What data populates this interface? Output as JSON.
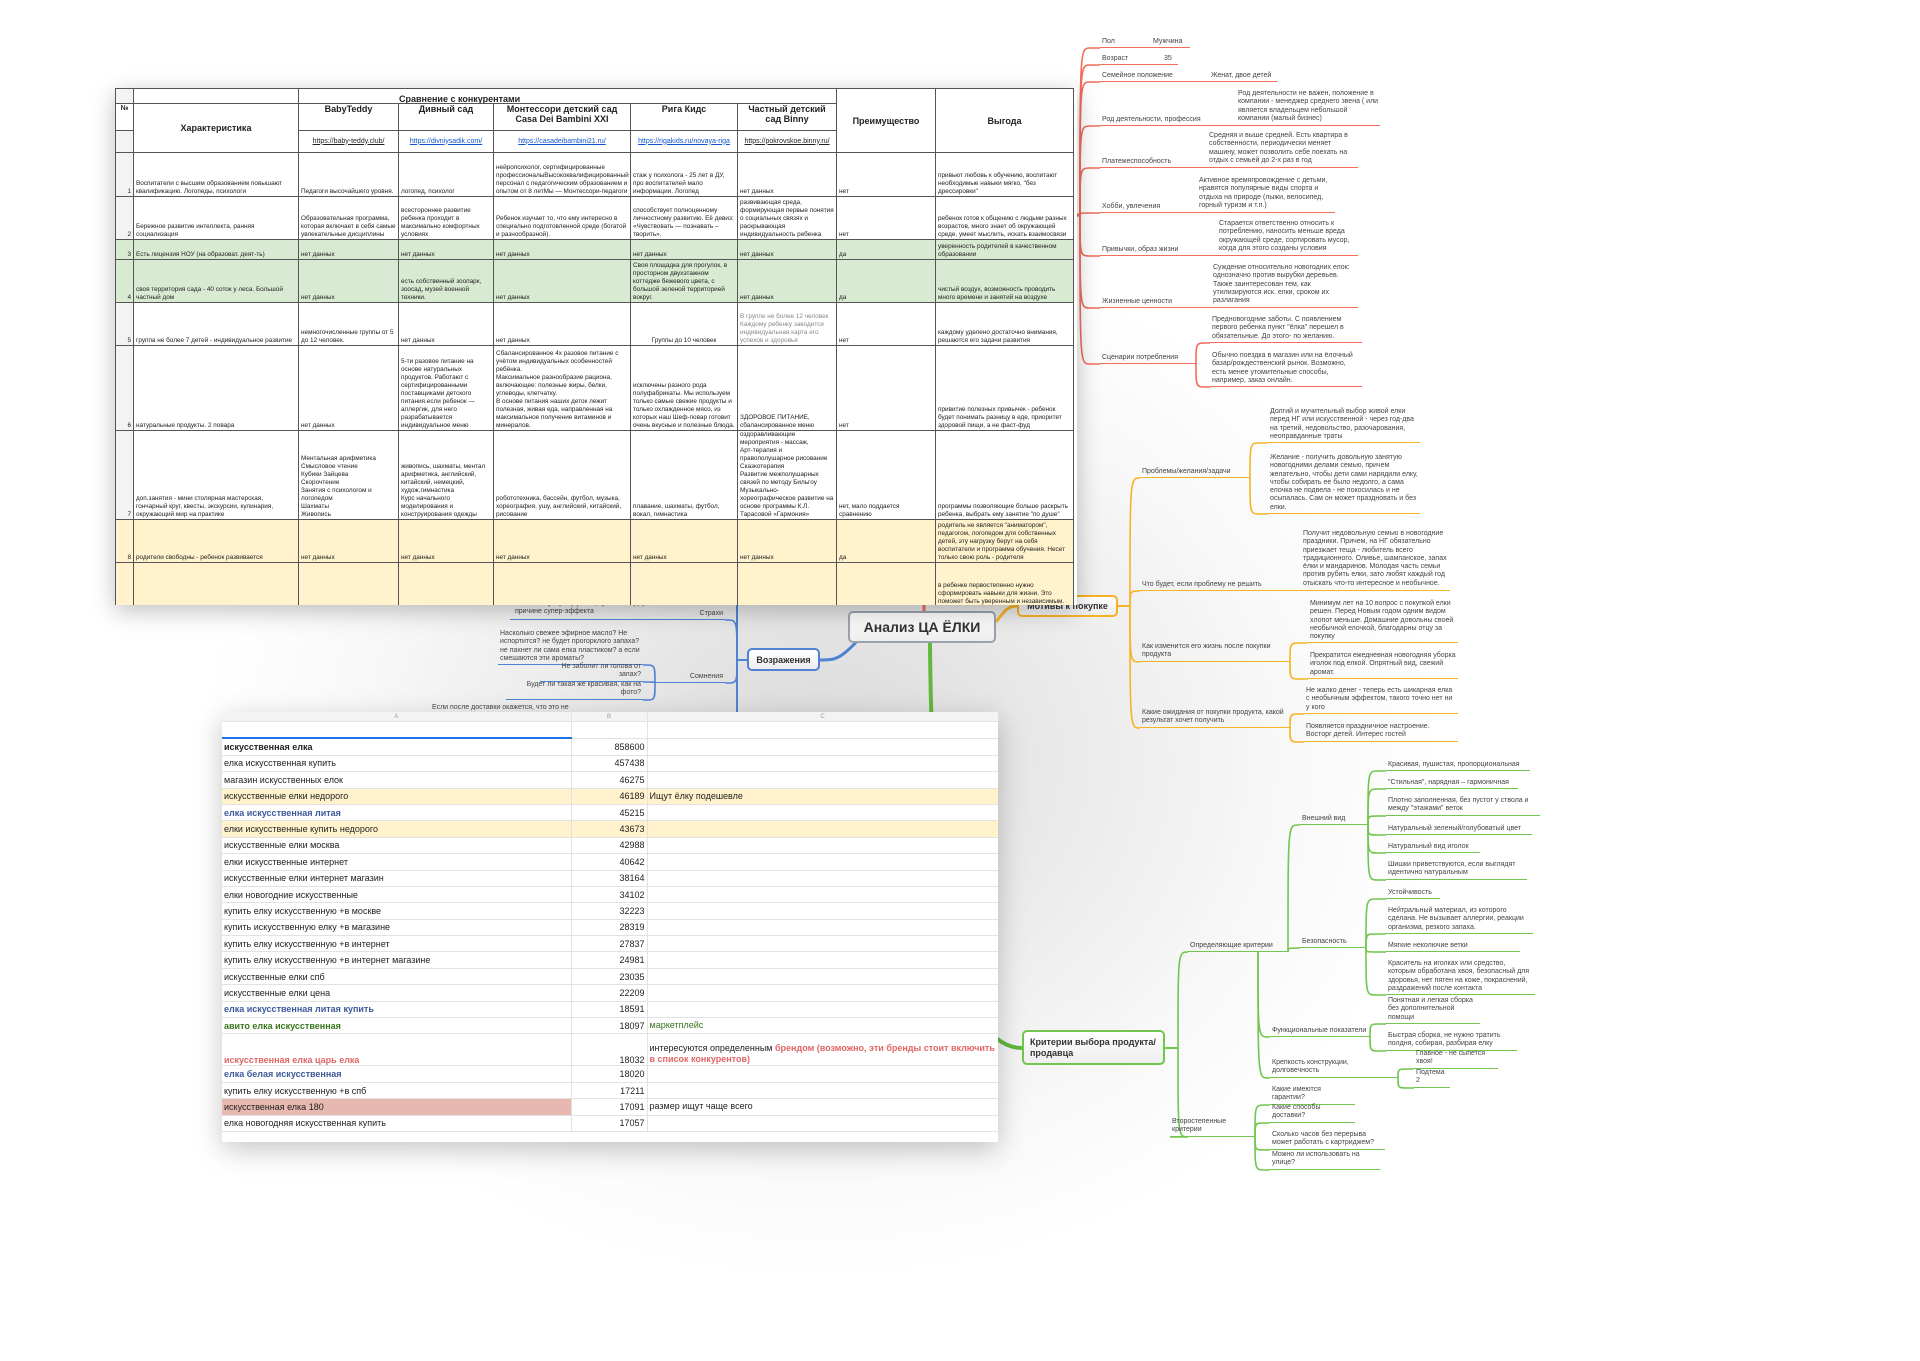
{
  "colors": {
    "persona_branch": "#f26b5b",
    "motives_branch": "#f6b425",
    "criteria_branch": "#72c54e",
    "objections_branch": "#4f82d2",
    "sheet_green": "#d9ead3",
    "sheet_yellow": "#fff2cc",
    "sheet_pink": "#e6b8af",
    "link": "#1155cc"
  },
  "comparison_table": {
    "title": "Сравнение с конкурентами",
    "num_header": "№",
    "feature_header": "Характеристика",
    "advantage_header": "Преимущество",
    "benefit_header": "Выгода",
    "competitors": [
      "BabyTeddy",
      "Дивный сад",
      "Монтессори детский сад Casa Dei Bambini XXI",
      "Рига Кидс",
      "Частный детский сад Binny"
    ],
    "links": [
      "https://baby-teddy.club/",
      "https://divniysadik.com/",
      "https://casadeibambini21.ru/",
      "https://rigakids.ru/novaya-riga",
      "https://pokrovskoe.binny.ru/"
    ],
    "rows": [
      {
        "num": "1",
        "fill": "",
        "feature": "Воспитатели с высшим образованием повышают квалификацию. Логопеды, психологи",
        "values": [
          "Педагоги высочайшего уровня.",
          "логопед, психолог",
          "нейропсихолог, сертифицированные профессионалыВысококвалифицированный персонал с педагогическим образованием и опытом от 8 летМы — Монтессори-педагоги",
          "стаж у психолога - 25 лет в ДУ, про воспитателей мало информации. Логопед",
          "нет данных"
        ],
        "advantage": "нет",
        "benefit": "привьют любовь к обучению, воспитают необходимые навыки мягко, \"без дрессировки\""
      },
      {
        "num": "2",
        "fill": "",
        "feature": "Бережное развитие интеллекта, ранняя социализация",
        "values": [
          "Образовательная программа, которая включает в себя самые увлекательные дисциплины",
          "всестороннее развитие ребенка проходит в максимально комфортных условиях",
          "Ребенок изучает то, что ему интересно в специально подготовленной среде (богатой и разнообразной).",
          "способствует полноценному личностному развитию. Её девиз: «Чувствовать — познавать – творить».",
          "развивающая среда, формирующая первые понятия о социальных связях и раскрывающая индивидуальность ребенка"
        ],
        "advantage": "нет",
        "benefit": "ребенок готов к общению с людьми разных возрастов, много знает об окружающей среде, умеет мыслить, искать взаимосвязи"
      },
      {
        "num": "3",
        "fill": "green",
        "feature": "Есть лицензия НОУ (на образоват. деят-ть)",
        "values": [
          "нет данных",
          "нет данных",
          "нет данных",
          "нет данных",
          "нет данных"
        ],
        "advantage": "да",
        "benefit": "уверенность родителей в качественном образовании"
      },
      {
        "num": "4",
        "fill": "green",
        "feature": "своя территория сада - 40 соток у леса. Большой частный дом",
        "values": [
          "нет данных",
          "есть собственный зоопарк, зоосад, музей военной техники.",
          "нет данных",
          "Своя площадка для прогулок, в просторном двухэтажном коттедже бежевого цвета, с большой зеленой территорией вокруг.",
          "нет данных"
        ],
        "advantage": "да",
        "benefit": "чистый воздух, возможность проводить много времени и занятий на воздухе"
      },
      {
        "num": "5",
        "fill": "",
        "feature": "группа не более 7 детей - индивидуальное развитие",
        "values": [
          "немногочисленные группы от 5 до 12 человек.",
          "нет данных",
          "нет данных",
          "Группы до 10 человек",
          "В группе не более 12 человек Каждому ребенку заводится индивидуальная карта его успехов и здоровья"
        ],
        "advantage": "нет",
        "benefit": "каждому уделено достаточно внимания, решаются его задачи развития"
      },
      {
        "num": "6",
        "fill": "",
        "feature": "натуральные продукты. 2 повара",
        "values": [
          "нет данных",
          "5-ти разовое питание на основе натуральных продуктов. Работают с сертифицированными поставщиками детского питания.если ребенок — аллергик, для него разрабатывается индивидуальное меню",
          "Сбалансированное 4х разовое питание с учётом индивидуальных особенностей ребёнка.\nМаксимальное разнообразие рациона, включающее: полезные жиры, белки, углеводы, клетчатку.\nВ основе питания наших деток лежит полезная, живая еда, направленная на максимальное получение витаминов и минералов.",
          "исключены разного рода полуфабрикаты. Мы используем только самые свежие продукты и только охлажденное мясо, из которых наш Шеф-повар готовит очень вкусные и полезные блюда.",
          "ЗДОРОВОЕ ПИТАНИЕ, сбалансированное меню"
        ],
        "advantage": "нет",
        "benefit": "привитие полезных привычек - ребенок будет понимать разницу в еде, приоритет здоровой пищи, а не фаст-фуд"
      },
      {
        "num": "7",
        "fill": "",
        "feature": "доп.занятия - мини столярная мастерская, гончарный круг, квесты, экскурсии, кулинария, окружающий мир на практике",
        "values": [
          "Ментальная арифметика\nСмысловое чтение\nКубики Зайцева\nСкорочтение\nЗанятия с психологом и логопедом\nШахматы\nЖивопись",
          "живопись, шахматы, ментал арифметика, английский, китайский, немецкий, худож.гимнастика\nКурс начального моделирования и конструирования одежды",
          "робототехника, бассейн, футбол, музыка, хореография, ушу, английский, китайский, рисование",
          "плавание, шахматы, футбол, вокал, гимнастика",
          "оздоравливающие мероприятия - массаж,\nАрт-терапия и правополушарное рисование\nСказкотерапия\nРазвитие межполушарных связей по методу Бильгоу\nМузыкально-хореографическое развитие на основе программы К.Л. Тарасовой «Гармония»"
        ],
        "advantage": "нет, мало поддается сравнению",
        "benefit": "программы позволяющие больше раскрыть ребенка, выбрать ему занятие \"по душе\""
      },
      {
        "num": "8",
        "fill": "yellow",
        "feature": "родители свободны - ребенок развивается",
        "values": [
          "нет данных",
          "нет данных",
          "нет данных",
          "нет данных",
          "нет данных"
        ],
        "advantage": "да",
        "benefit": "родитель не является \"аниматором\", педагогом, логопедом для собственных детей, эту нагрузку берут на себя воспитатели и программа обучения. Несет только свою роль - родителя"
      },
      {
        "num": "",
        "fill": "yellow",
        "feature": "зоны развивающей среды методики монтессори - для самостоятельности ребенка (убрать за собой,",
        "values": [
          "",
          "",
          "Полная система образования по",
          "",
          ""
        ],
        "advantage": "",
        "benefit": "в ребенке первостепенно нужно сформировать навыки для жизни. Это поможет быть уверенным и независимым. Лишь затем обременять доп.занятиями. Создать \"базу\", а потом"
      }
    ]
  },
  "keywords": {
    "column_letters": [
      "A",
      "B",
      "C"
    ],
    "rows": [
      {
        "query": "искусственная елка",
        "volume": "858600",
        "note": "",
        "style": "bold",
        "highlight": ""
      },
      {
        "query": "елка искусственная купить",
        "volume": "457438",
        "note": "",
        "style": "",
        "highlight": ""
      },
      {
        "query": "магазин искусственных елок",
        "volume": "46275",
        "note": "",
        "style": "",
        "highlight": ""
      },
      {
        "query": "искусственные елки недорого",
        "volume": "46189",
        "note": "Ищут ёлку подешевле",
        "style": "",
        "highlight": "yellow"
      },
      {
        "query": "елка искусственная литая",
        "volume": "45215",
        "note": "",
        "style": "blue",
        "highlight": ""
      },
      {
        "query": "елки искусственные купить недорого",
        "volume": "43673",
        "note": "",
        "style": "",
        "highlight": "yellow"
      },
      {
        "query": "искусственные елки москва",
        "volume": "42988",
        "note": "",
        "style": "",
        "highlight": ""
      },
      {
        "query": "елки искусственные интернет",
        "volume": "40642",
        "note": "",
        "style": "",
        "highlight": ""
      },
      {
        "query": "искусственные елки интернет магазин",
        "volume": "38164",
        "note": "",
        "style": "",
        "highlight": ""
      },
      {
        "query": "елки новогодние искусственные",
        "volume": "34102",
        "note": "",
        "style": "",
        "highlight": ""
      },
      {
        "query": "купить елку искусственную +в москве",
        "volume": "32223",
        "note": "",
        "style": "",
        "highlight": ""
      },
      {
        "query": "купить искусственную елку +в магазине",
        "volume": "28319",
        "note": "",
        "style": "",
        "highlight": ""
      },
      {
        "query": "купить елку искусственную +в интернет",
        "volume": "27837",
        "note": "",
        "style": "",
        "highlight": ""
      },
      {
        "query": "купить елку искусственную +в интернет магазине",
        "volume": "24981",
        "note": "",
        "style": "",
        "highlight": ""
      },
      {
        "query": "искусственные елки спб",
        "volume": "23035",
        "note": "",
        "style": "",
        "highlight": ""
      },
      {
        "query": "искусственные елки цена",
        "volume": "22209",
        "note": "",
        "style": "",
        "highlight": ""
      },
      {
        "query": "елка искусственная литая купить",
        "volume": "18591",
        "note": "",
        "style": "blue",
        "highlight": ""
      },
      {
        "query": "авито елка искусственная",
        "volume": "18097",
        "note": "маркетплейс",
        "style": "green",
        "highlight": ""
      },
      {
        "query": "искусственная елка царь елка",
        "volume": "18032",
        "note": "интересуются определенным ",
        "note_emphasis": "брендом (возможно, эти бренды стоит включить в список конкурентов)",
        "style": "red",
        "highlight": ""
      },
      {
        "query": "елка белая искусственная",
        "volume": "18020",
        "note": "",
        "style": "blue",
        "highlight": ""
      },
      {
        "query": "купить елку искусственную +в спб",
        "volume": "17211",
        "note": "",
        "style": "",
        "highlight": ""
      },
      {
        "query": "искусственная елка 180",
        "volume": "17091",
        "note": "размер ищут чаще всего",
        "style": "",
        "highlight": "pink"
      },
      {
        "query": "елка новогодняя искусственная купить",
        "volume": "17057",
        "note": "",
        "style": "",
        "highlight": ""
      }
    ]
  },
  "mindmap": {
    "center": "Анализ ЦА ЁЛКИ",
    "persona": {
      "items": [
        {
          "label": "Пол",
          "value": "Мужчина"
        },
        {
          "label": "Возраст",
          "value": "35"
        },
        {
          "label": "Семейное положение",
          "value": "Женат, двое детей"
        },
        {
          "label": "Род деятельности, профессия",
          "value": "Род деятельности не важен, положение в компании  - менеджер среднего звена ( или является владельцем небольшой компании (малый бизнес)"
        },
        {
          "label": "Платежеспособность",
          "value": "Средняя и выше средней. Есть квартира в собственности, периодически меняет машину, может позволить себе поехать на отдых с семьей до 2-х раз в год"
        },
        {
          "label": "Хобби, увлечения",
          "value": "Активное времяпровождение с детьми, нравятся популярные виды спорта и отдыха на природе (лыжи, велосипед, горный туризм и т.п.)"
        },
        {
          "label": "Привычки, образ жизни",
          "value": "Старается ответственно относить к потреблению, наносить меньше вреда окружающей среде, сортировать мусор, когда для этого созданы условия"
        },
        {
          "label": "Жизненные ценности",
          "value": "Суждение относительно новогодних елок: однозначно против вырубки деревьев. Также заинтересован тем, как утилизируются иск. елки, сроком их разлагания"
        }
      ],
      "scenarios": {
        "label": "Сценарии потребления",
        "values": [
          "Предновогодние заботы. С появлением первого ребенка пункт \"ёлка\" перешел в обязательные. До этого- по желанию.",
          "Обычно поездка в магазин или на ёлочный базар/рождественский рынок. Возможно, есть менее утомительные способы, например, заказ онлайн."
        ]
      }
    },
    "motives": {
      "title": "Мотивы к покупке",
      "items": [
        {
          "label": "Проблемы/желания/задачи",
          "values": [
            "Долгий и мучительный выбор живой елки перед НГ или искусственной - через год-два на третий, недовольство, разочарования, неоправданные траты",
            "Желание - получить довольную занятую новогодними делами семью, причем желательно, чтобы дети сами нарядили елку, чтобы собирать ее было недолго, а сама елочка не подвела - не покосилась и не осыпалась. Сам он может праздновать и без елки."
          ]
        },
        {
          "label": "Что будет, если проблему не решить",
          "values": [
            "Получит недовольную семью в новогодние праздники.  Причем, на НГ обязательно приезжает теща - любитель всего традиционного. Оливье, шампанское, запах ёлки и мандаринов. Молодая часть семьи против рубить елки, зато любят каждый год отыскать что-то интересное и необычное."
          ]
        },
        {
          "label": "Как изменится его жизнь после покупки продукта",
          "values": [
            "Минимум лет на 10 вопрос с покупкой елки решен. Перед Новым годом одним видом хлопот меньше. Домашние довольны своей необычной елочкой, благодарны отцу за покупку",
            "Прекратится ежедневная новогодняя уборка иголок под елкой. Опрятный вид, свежий аромат."
          ]
        },
        {
          "label": "Какие ожидания от покупки продукта, какой результат хочет получить",
          "values": [
            "Не жалко денег - теперь есть шикарная елка с необычным эффектом, такого точно нет ни у кого",
            "Появляется праздничное настроение. Восторг детей. Интерес гостей"
          ]
        }
      ]
    },
    "objections": {
      "title": "Возражения",
      "fears": {
        "label": "Страхи",
        "values": [
          "елка без супер-эффекта, купленная дорого по причине супер-эффекта"
        ]
      },
      "doubts": {
        "label": "Сомнения",
        "values": [
          "Насколько свежее эфирное масло? Не испортится? не будет прогорклого запаха? не пахнет ли сама елка пластиком? а если смешаются эти ароматы?",
          "Не заболит ли голова от запах?",
          "Будет ли такая же красивая, как на фото?"
        ]
      },
      "partial": "Если после доставки окажется, что это не"
    },
    "criteria": {
      "title": "Критерии выбора продукта/ продавца",
      "defining": {
        "label": "Определяющие критерии",
        "groups": [
          {
            "label": "Внешний вид",
            "values": [
              "Красивая, пушистая, пропорциональная",
              "\"Стильная\", нарядная – гармоничная",
              "Плотно заполненная, без пустот у ствола и между \"этажами\" веток",
              "Натуральный зеленый/голубоватый цвет",
              "Натуральный вид иголок",
              "Шишки приветствуются, если выглядят идентично натуральным"
            ]
          },
          {
            "label": "Безопасность",
            "values": [
              "Устойчивость",
              "Нейтральный материал,  из которого сделана. Не вызывает аллергии, реакции организма, резкого запаха.",
              "Мягкие неколючие ветки",
              "Краситель на иголках или средство, которым  обработана хвоя, безопасный для здоровья, нет пятен на коже, покраснений, раздражений после контакта"
            ]
          },
          {
            "label": "Функциональные показатели",
            "values": [
              "Понятная и легкая сборка без дополнительной помощи",
              "Быстрая сборка, не нужно тратить полдня, собирая, разбирая елку"
            ]
          },
          {
            "label": "Крепкость конструкции, долговечность",
            "values": [
              "Главное - не сыпется хвоя!",
              "Подтема 2"
            ]
          }
        ]
      },
      "secondary": {
        "label": "Второстепенные критерии",
        "values": [
          "Какие имеются гарантии?",
          "Какие способы доставки?",
          "Сколько часов без перерыва может работать с картриджем?",
          "Можно ли использовать на улице?"
        ]
      }
    }
  }
}
